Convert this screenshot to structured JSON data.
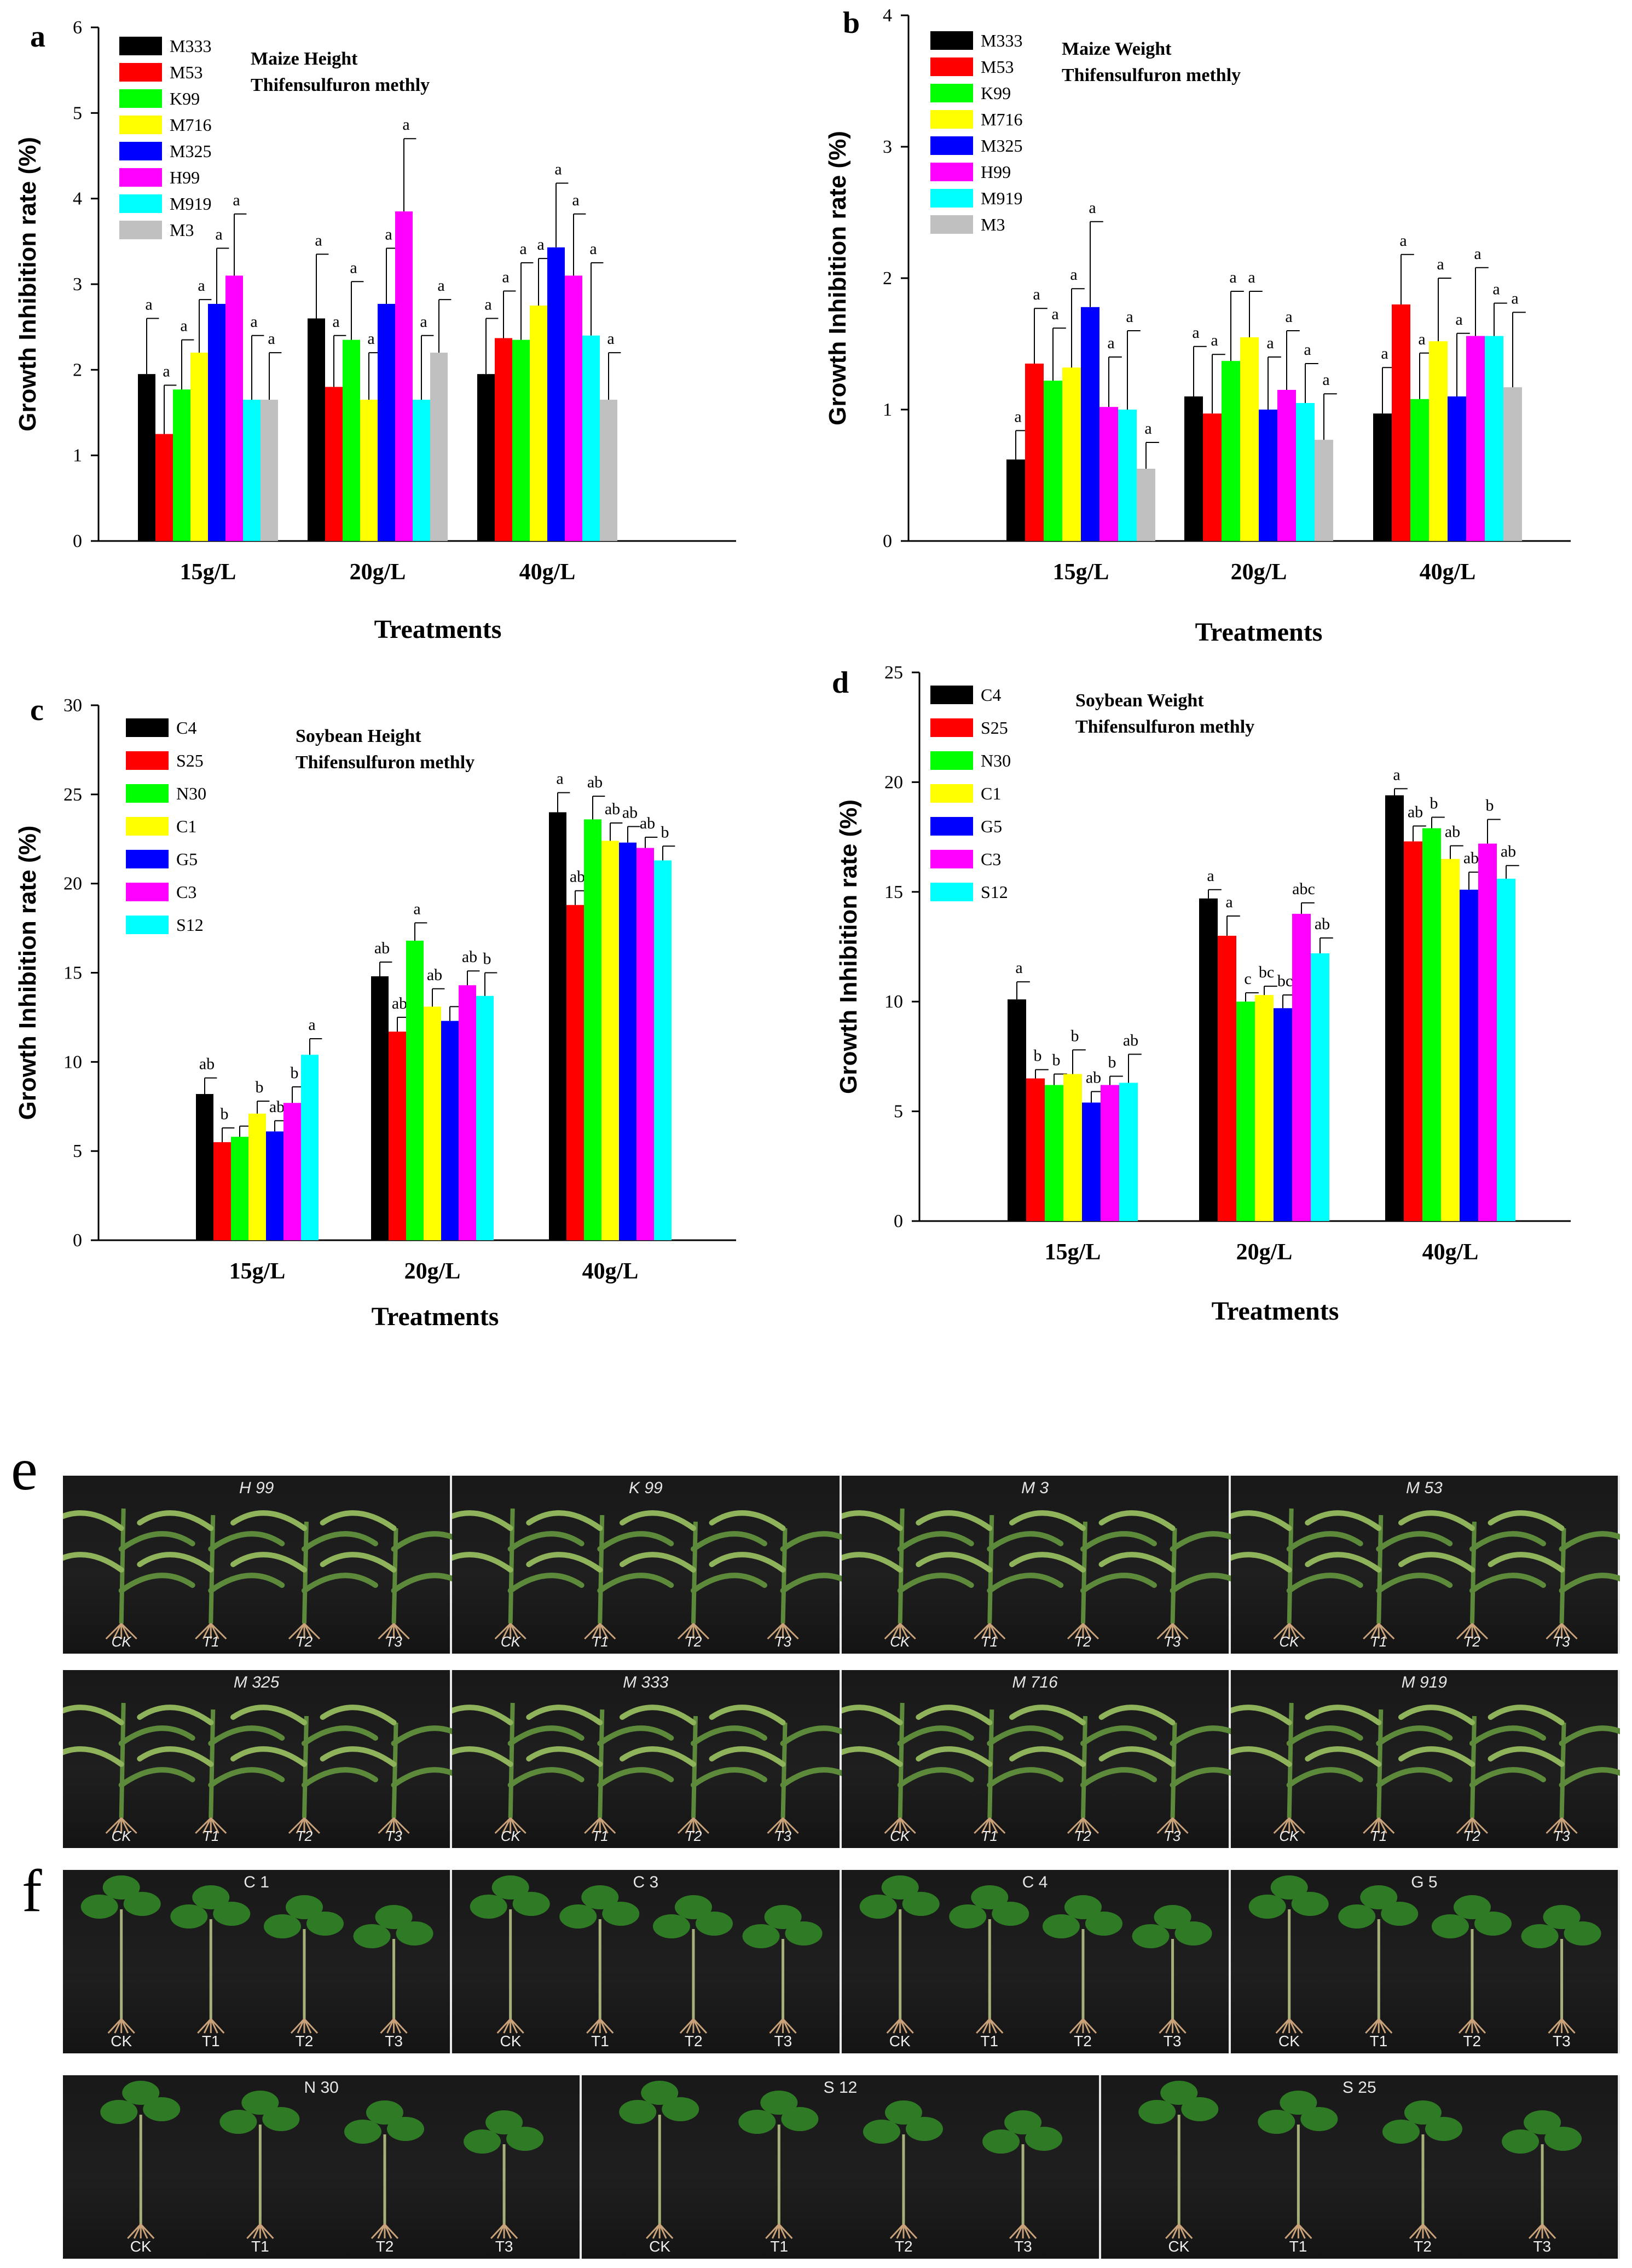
{
  "chart_data": [
    {
      "type": "bar",
      "panel_letter": "a",
      "title": "Maize Height",
      "subtitle": "Thifensulfuron methly",
      "xlabel": "Treatments",
      "ylabel": "Growth Inhibition rate (%)",
      "ylim": [
        0,
        6
      ],
      "yticks": [
        "0",
        "1",
        "2",
        "3",
        "4",
        "5",
        "6"
      ],
      "categories": [
        "15g/L",
        "20g/L",
        "40g/L"
      ],
      "series": [
        {
          "name": "M333",
          "color": "#000000",
          "values": [
            1.95,
            2.6,
            1.95
          ],
          "errors": [
            0.65,
            0.75,
            0.65
          ],
          "letters": [
            "a",
            "a",
            "a"
          ]
        },
        {
          "name": "M53",
          "color": "#ff0000",
          "values": [
            1.25,
            1.8,
            2.37
          ],
          "errors": [
            0.57,
            0.6,
            0.55
          ],
          "letters": [
            "a",
            "a",
            "a"
          ]
        },
        {
          "name": "K99",
          "color": "#00ff00",
          "values": [
            1.77,
            2.35,
            2.35
          ],
          "errors": [
            0.58,
            0.68,
            0.9
          ],
          "letters": [
            "a",
            "a",
            "a"
          ]
        },
        {
          "name": "M716",
          "color": "#ffff00",
          "values": [
            2.2,
            1.65,
            2.75
          ],
          "errors": [
            0.62,
            0.55,
            0.55
          ],
          "letters": [
            "a",
            "a",
            "a"
          ]
        },
        {
          "name": "M325",
          "color": "#0000ff",
          "values": [
            2.77,
            2.77,
            3.43
          ],
          "errors": [
            0.65,
            0.65,
            0.75
          ],
          "letters": [
            "a",
            "a",
            "a"
          ]
        },
        {
          "name": "H99",
          "color": "#ff00ff",
          "values": [
            3.1,
            3.85,
            3.1
          ],
          "errors": [
            0.72,
            0.85,
            0.72
          ],
          "letters": [
            "a",
            "a",
            "a"
          ]
        },
        {
          "name": "M919",
          "color": "#00ffff",
          "values": [
            1.65,
            1.65,
            2.4
          ],
          "errors": [
            0.75,
            0.75,
            0.85
          ],
          "letters": [
            "a",
            "a",
            "a"
          ]
        },
        {
          "name": "M3",
          "color": "#c0c0c0",
          "values": [
            1.65,
            2.2,
            1.65
          ],
          "errors": [
            0.55,
            0.62,
            0.55
          ],
          "letters": [
            "a",
            "a",
            "a"
          ]
        }
      ]
    },
    {
      "type": "bar",
      "panel_letter": "b",
      "title": "Maize Weight",
      "subtitle": "Thifensulfuron methly",
      "xlabel": "Treatments",
      "ylabel": "Growth Inhibition rate (%)",
      "ylim": [
        0,
        4
      ],
      "yticks": [
        "0",
        "1",
        "2",
        "3",
        "4"
      ],
      "categories": [
        "15g/L",
        "20g/L",
        "40g/L"
      ],
      "series": [
        {
          "name": "M333",
          "color": "#000000",
          "values": [
            0.62,
            1.1,
            0.97
          ],
          "errors": [
            0.22,
            0.38,
            0.35
          ],
          "letters": [
            "a",
            "a",
            "a"
          ]
        },
        {
          "name": "M53",
          "color": "#ff0000",
          "values": [
            1.35,
            0.97,
            1.8
          ],
          "errors": [
            0.42,
            0.45,
            0.38
          ],
          "letters": [
            "a",
            "a",
            "a"
          ]
        },
        {
          "name": "K99",
          "color": "#00ff00",
          "values": [
            1.22,
            1.37,
            1.08
          ],
          "errors": [
            0.4,
            0.53,
            0.35
          ],
          "letters": [
            "a",
            "a",
            "a"
          ]
        },
        {
          "name": "M716",
          "color": "#ffff00",
          "values": [
            1.32,
            1.55,
            1.52
          ],
          "errors": [
            0.6,
            0.35,
            0.48
          ],
          "letters": [
            "a",
            "a",
            "a"
          ]
        },
        {
          "name": "M325",
          "color": "#0000ff",
          "values": [
            1.78,
            1.0,
            1.1
          ],
          "errors": [
            0.65,
            0.4,
            0.48
          ],
          "letters": [
            "a",
            "a",
            "a"
          ]
        },
        {
          "name": "H99",
          "color": "#ff00ff",
          "values": [
            1.02,
            1.15,
            1.56
          ],
          "errors": [
            0.38,
            0.45,
            0.52
          ],
          "letters": [
            "a",
            "a",
            "a"
          ]
        },
        {
          "name": "M919",
          "color": "#00ffff",
          "values": [
            1.0,
            1.05,
            1.56
          ],
          "errors": [
            0.6,
            0.3,
            0.25
          ],
          "letters": [
            "a",
            "a",
            "a"
          ]
        },
        {
          "name": "M3",
          "color": "#c0c0c0",
          "values": [
            0.55,
            0.77,
            1.17
          ],
          "errors": [
            0.2,
            0.35,
            0.57
          ],
          "letters": [
            "a",
            "a",
            "a"
          ]
        }
      ]
    },
    {
      "type": "bar",
      "panel_letter": "c",
      "title": "Soybean Height",
      "subtitle": "Thifensulfuron methly",
      "xlabel": "Treatments",
      "ylabel": "Growth Inhibition rate (%)",
      "ylim": [
        0,
        30
      ],
      "yticks": [
        "0",
        "5",
        "10",
        "15",
        "20",
        "25",
        "30"
      ],
      "categories": [
        "15g/L",
        "20g/L",
        "40g/L"
      ],
      "series": [
        {
          "name": "C4",
          "color": "#000000",
          "values": [
            8.2,
            14.8,
            24.0
          ],
          "errors": [
            0.9,
            0.8,
            1.1
          ],
          "letters": [
            "ab",
            "ab",
            "a"
          ]
        },
        {
          "name": "S25",
          "color": "#ff0000",
          "values": [
            5.5,
            11.7,
            18.8
          ],
          "errors": [
            0.8,
            0.8,
            0.8
          ],
          "letters": [
            "b",
            "ab",
            "ab"
          ]
        },
        {
          "name": "N30",
          "color": "#00ff00",
          "values": [
            5.8,
            16.8,
            23.6
          ],
          "errors": [
            0.6,
            1.0,
            1.3
          ],
          "letters": [
            "",
            "a",
            "ab"
          ]
        },
        {
          "name": "C1",
          "color": "#ffff00",
          "values": [
            7.1,
            13.1,
            22.4
          ],
          "errors": [
            0.7,
            1.0,
            1.0
          ],
          "letters": [
            "b",
            "ab",
            "ab"
          ]
        },
        {
          "name": "G5",
          "color": "#0000ff",
          "values": [
            6.1,
            12.3,
            22.3
          ],
          "errors": [
            0.6,
            0.8,
            0.9
          ],
          "letters": [
            "ab",
            "",
            "ab"
          ]
        },
        {
          "name": "C3",
          "color": "#ff00ff",
          "values": [
            7.7,
            14.3,
            22.0
          ],
          "errors": [
            0.9,
            0.8,
            0.6
          ],
          "letters": [
            "b",
            "ab",
            "ab"
          ]
        },
        {
          "name": "S12",
          "color": "#00ffff",
          "values": [
            10.4,
            13.7,
            21.3
          ],
          "errors": [
            0.9,
            1.3,
            0.8
          ],
          "letters": [
            "a",
            "b",
            "b"
          ]
        }
      ]
    },
    {
      "type": "bar",
      "panel_letter": "d",
      "title": "Soybean Weight",
      "subtitle": "Thifensulfuron methly",
      "xlabel": "Treatments",
      "ylabel": "Growth Inhibition rate (%)",
      "ylim": [
        0,
        25
      ],
      "yticks": [
        "0",
        "5",
        "10",
        "15",
        "20",
        "25"
      ],
      "categories": [
        "15g/L",
        "20g/L",
        "40g/L"
      ],
      "series": [
        {
          "name": "C4",
          "color": "#000000",
          "values": [
            10.1,
            14.7,
            19.4
          ],
          "errors": [
            0.8,
            0.4,
            0.3
          ],
          "letters": [
            "a",
            "a",
            "a"
          ]
        },
        {
          "name": "S25",
          "color": "#ff0000",
          "values": [
            6.5,
            13.0,
            17.3
          ],
          "errors": [
            0.4,
            0.9,
            0.7
          ],
          "letters": [
            "b",
            "a",
            "ab"
          ]
        },
        {
          "name": "N30",
          "color": "#00ff00",
          "values": [
            6.2,
            10.0,
            17.9
          ],
          "errors": [
            0.5,
            0.4,
            0.5
          ],
          "letters": [
            "b",
            "c",
            "b"
          ]
        },
        {
          "name": "C1",
          "color": "#ffff00",
          "values": [
            6.7,
            10.3,
            16.5
          ],
          "errors": [
            1.1,
            0.4,
            0.6
          ],
          "letters": [
            "b",
            "bc",
            "ab"
          ]
        },
        {
          "name": "G5",
          "color": "#0000ff",
          "values": [
            5.4,
            9.7,
            15.1
          ],
          "errors": [
            0.5,
            0.6,
            0.8
          ],
          "letters": [
            "ab",
            "bc",
            "ab"
          ]
        },
        {
          "name": "C3",
          "color": "#ff00ff",
          "values": [
            6.2,
            14.0,
            17.2
          ],
          "errors": [
            0.4,
            0.5,
            1.1
          ],
          "letters": [
            "b",
            "abc",
            "b"
          ]
        },
        {
          "name": "S12",
          "color": "#00ffff",
          "values": [
            6.3,
            12.2,
            15.6
          ],
          "errors": [
            1.3,
            0.7,
            0.6
          ],
          "letters": [
            "ab",
            "ab",
            "ab"
          ]
        }
      ]
    }
  ],
  "photos": {
    "e_letter": "e",
    "f_letter": "f",
    "maize_labels": [
      "CK",
      "T1",
      "T2",
      "T3"
    ],
    "soy_labels": [
      "CK",
      "T1",
      "T2",
      "T3"
    ],
    "maize_row1": [
      "H 99",
      "K 99",
      "M 3",
      "M 53"
    ],
    "maize_row2": [
      "M 325",
      "M 333",
      "M 716",
      "M 919"
    ],
    "soy_row1": [
      "C 1",
      "C 3",
      "C 4",
      "G 5"
    ],
    "soy_row2": [
      "N 30",
      "S 12",
      "S 25"
    ],
    "colors": {
      "leaf": "#5c8a3a",
      "leaf_light": "#8fb35a",
      "soy_leaf": "#2f7a24",
      "root": "#c9a27a"
    }
  }
}
